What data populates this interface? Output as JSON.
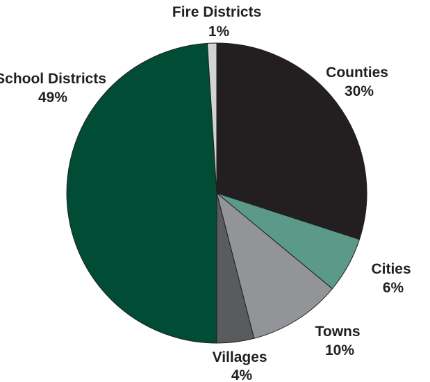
{
  "chart_data": {
    "type": "pie",
    "start_angle_deg": 0,
    "direction": "clockwise",
    "slices": [
      {
        "name": "Counties",
        "value": 30,
        "label": "30%",
        "color": "#231f20"
      },
      {
        "name": "Cities",
        "value": 6,
        "label": "6%",
        "color": "#5b9a88"
      },
      {
        "name": "Towns",
        "value": 10,
        "label": "10%",
        "color": "#929497"
      },
      {
        "name": "Villages",
        "value": 4,
        "label": "4%",
        "color": "#5a5b5d"
      },
      {
        "name": "School Districts",
        "value": 49,
        "label": "49%",
        "color": "#004c35"
      },
      {
        "name": "Fire Districts",
        "value": 1,
        "label": "1%",
        "color": "#d2d3d5"
      }
    ]
  }
}
